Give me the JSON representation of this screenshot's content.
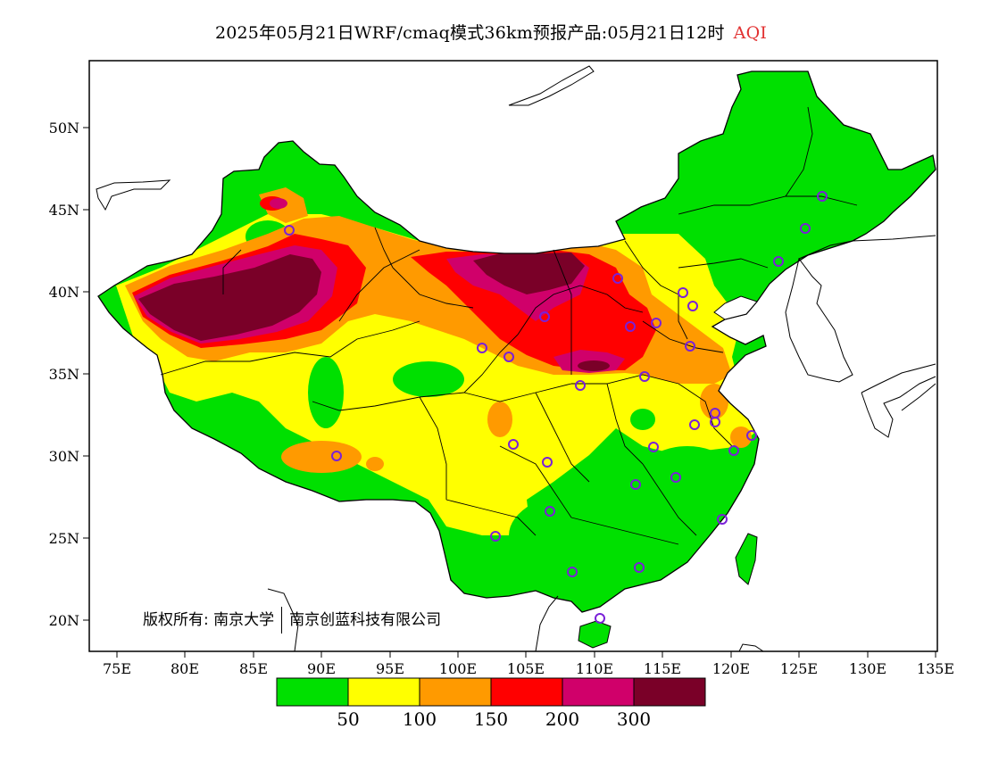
{
  "title": {
    "main": "2025年05月21日WRF/cmaq模式36km预报产品:05月21日12时",
    "variable": "AQI"
  },
  "lat_labels": [
    "50N",
    "45N",
    "40N",
    "35N",
    "30N",
    "25N",
    "20N"
  ],
  "lon_labels": [
    "75E",
    "80E",
    "85E",
    "90E",
    "95E",
    "100E",
    "105E",
    "110E",
    "115E",
    "120E",
    "125E",
    "130E",
    "135E"
  ],
  "copyright": {
    "left": "版权所有: 南京大学",
    "right": "南京创蓝科技有限公司"
  },
  "legend": {
    "colors": [
      "#00e000",
      "#ffff00",
      "#ff9a00",
      "#ff0000",
      "#d0006a",
      "#7a0028"
    ],
    "labels": [
      "50",
      "100",
      "150",
      "200",
      "300"
    ]
  },
  "colors": {
    "good": "#00e000",
    "moderate": "#ffff00",
    "usg": "#ff9a00",
    "unhealthy": "#ff0000",
    "very_unhealthy": "#d0006a",
    "hazardous": "#7a0028",
    "station": "#7a20d8"
  }
}
